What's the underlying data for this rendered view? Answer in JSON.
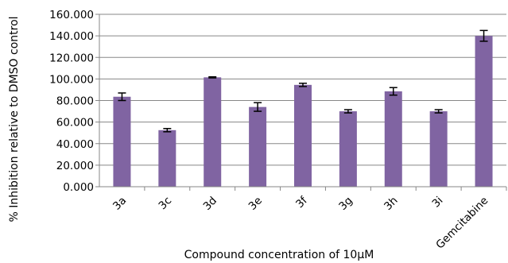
{
  "chart_data": {
    "type": "bar",
    "title": "",
    "xlabel": "Compound concentration of 10μM",
    "ylabel": "% Inhibition relative to DMSO control",
    "categories": [
      "3a",
      "3c",
      "3d",
      "3e",
      "3f",
      "3g",
      "3h",
      "3i",
      "Gemcitabine"
    ],
    "series": [
      {
        "values": [
          83.5,
          52.5,
          101.5,
          74,
          94.5,
          70,
          88.5,
          70,
          140
        ],
        "errors": [
          3.5,
          1.5,
          0.5,
          4,
          1.5,
          1.5,
          3.5,
          1.5,
          5
        ]
      }
    ],
    "ylim": [
      0,
      160
    ],
    "yticks": [
      0,
      20,
      40,
      60,
      80,
      100,
      120,
      140,
      160
    ],
    "ytick_labels": [
      "0.000",
      "20.000",
      "40.000",
      "60.000",
      "80.000",
      "100.000",
      "120.000",
      "140.000",
      "160.000"
    ],
    "grid": "horizontal",
    "legend": "none",
    "colors": {
      "bar": "#8064A2",
      "grid": "#878787",
      "axis": "#878787"
    }
  }
}
